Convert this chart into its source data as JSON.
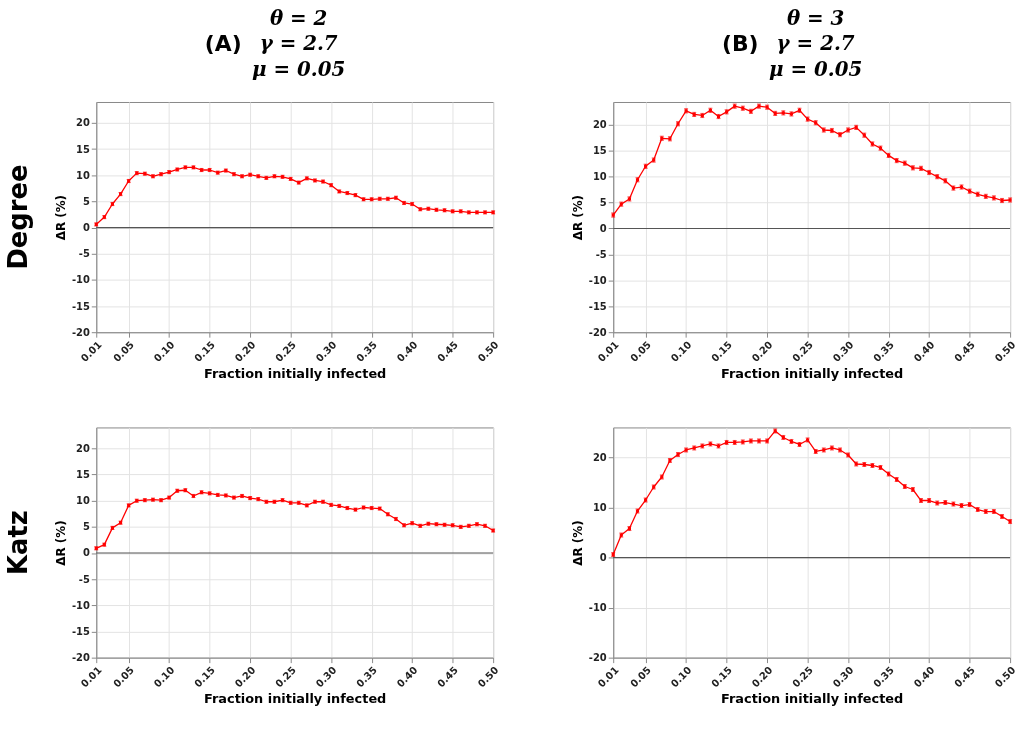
{
  "chart_data": [
    {
      "type": "line",
      "title": "(A)",
      "subtitle": "θ = 2\nγ = 2.7\nμ = 0.05",
      "annotations": [
        "Degree"
      ],
      "xlabel": "Fraction initially infected",
      "ylabel": "ΔR (%)",
      "grid": true,
      "marker": "square",
      "line_style": "solid",
      "xlim": [
        0.01,
        0.5
      ],
      "ylim": [
        -20,
        24
      ],
      "xticks": [
        {
          "value": 0.01,
          "label": "0.01"
        },
        {
          "value": 0.05,
          "label": "0.05"
        },
        {
          "value": 0.1,
          "label": "0.10"
        },
        {
          "value": 0.15,
          "label": "0.15"
        },
        {
          "value": 0.2,
          "label": "0.20"
        },
        {
          "value": 0.25,
          "label": "0.25"
        },
        {
          "value": 0.3,
          "label": "0.30"
        },
        {
          "value": 0.35,
          "label": "0.35"
        },
        {
          "value": 0.4,
          "label": "0.40"
        },
        {
          "value": 0.45,
          "label": "0.45"
        },
        {
          "value": 0.5,
          "label": "0.50"
        }
      ],
      "yticks": [
        -20,
        -15,
        -10,
        -5,
        0,
        5,
        10,
        15,
        20
      ],
      "ref_lines": [
        {
          "axis": "y",
          "value": 0,
          "color": "#555555"
        }
      ],
      "x": [
        0.01,
        0.02,
        0.03,
        0.04,
        0.05,
        0.06,
        0.07,
        0.08,
        0.09,
        0.1,
        0.11,
        0.12,
        0.13,
        0.14,
        0.15,
        0.16,
        0.17,
        0.18,
        0.19,
        0.2,
        0.21,
        0.22,
        0.23,
        0.24,
        0.25,
        0.26,
        0.27,
        0.28,
        0.29,
        0.3,
        0.31,
        0.32,
        0.33,
        0.34,
        0.35,
        0.36,
        0.37,
        0.38,
        0.39,
        0.4,
        0.41,
        0.42,
        0.43,
        0.44,
        0.45,
        0.46,
        0.47,
        0.48,
        0.49,
        0.5
      ],
      "series": [
        {
          "color": "#ff0000",
          "values": [
            0.6,
            2.0,
            4.5,
            6.4,
            8.9,
            10.4,
            10.3,
            9.8,
            10.2,
            10.6,
            11.1,
            11.5,
            11.5,
            11.0,
            11.0,
            10.5,
            10.9,
            10.2,
            9.8,
            10.1,
            9.8,
            9.5,
            9.8,
            9.7,
            9.3,
            8.6,
            9.4,
            9.0,
            8.8,
            8.1,
            6.9,
            6.6,
            6.2,
            5.4,
            5.4,
            5.5,
            5.5,
            5.7,
            4.7,
            4.5,
            3.5,
            3.6,
            3.4,
            3.3,
            3.1,
            3.1,
            2.9,
            2.9,
            2.9,
            2.9
          ],
          "errors": [
            0.3,
            0.3,
            0.3,
            0.3,
            0.3,
            0.3,
            0.3,
            0.3,
            0.3,
            0.3,
            0.3,
            0.3,
            0.3,
            0.3,
            0.3,
            0.3,
            0.3,
            0.3,
            0.3,
            0.3,
            0.3,
            0.3,
            0.3,
            0.3,
            0.3,
            0.3,
            0.3,
            0.3,
            0.3,
            0.3,
            0.3,
            0.3,
            0.3,
            0.3,
            0.3,
            0.3,
            0.3,
            0.3,
            0.3,
            0.3,
            0.3,
            0.3,
            0.3,
            0.3,
            0.3,
            0.3,
            0.3,
            0.3,
            0.3,
            0.3
          ]
        }
      ]
    },
    {
      "type": "line",
      "title": "(B)",
      "subtitle": "θ = 3\nγ = 2.7\nμ = 0.05",
      "xlabel": "Fraction initially infected",
      "ylabel": "ΔR (%)",
      "grid": true,
      "marker": "square",
      "line_style": "solid",
      "xlim": [
        0.01,
        0.5
      ],
      "ylim": [
        -20,
        24.4
      ],
      "xticks": [
        {
          "value": 0.01,
          "label": "0.01"
        },
        {
          "value": 0.05,
          "label": "0.05"
        },
        {
          "value": 0.1,
          "label": "0.10"
        },
        {
          "value": 0.15,
          "label": "0.15"
        },
        {
          "value": 0.2,
          "label": "0.20"
        },
        {
          "value": 0.25,
          "label": "0.25"
        },
        {
          "value": 0.3,
          "label": "0.30"
        },
        {
          "value": 0.35,
          "label": "0.35"
        },
        {
          "value": 0.4,
          "label": "0.40"
        },
        {
          "value": 0.45,
          "label": "0.45"
        },
        {
          "value": 0.5,
          "label": "0.50"
        }
      ],
      "yticks": [
        -20,
        -15,
        -10,
        -5,
        0,
        5,
        10,
        15,
        20
      ],
      "ref_lines": [
        {
          "axis": "y",
          "value": 0,
          "color": "#555555"
        }
      ],
      "x": [
        0.01,
        0.02,
        0.03,
        0.04,
        0.05,
        0.06,
        0.07,
        0.08,
        0.09,
        0.1,
        0.11,
        0.12,
        0.13,
        0.14,
        0.15,
        0.16,
        0.17,
        0.18,
        0.19,
        0.2,
        0.21,
        0.22,
        0.23,
        0.24,
        0.25,
        0.26,
        0.27,
        0.28,
        0.29,
        0.3,
        0.31,
        0.32,
        0.33,
        0.34,
        0.35,
        0.36,
        0.37,
        0.38,
        0.39,
        0.4,
        0.41,
        0.42,
        0.43,
        0.44,
        0.45,
        0.46,
        0.47,
        0.48,
        0.49,
        0.5
      ],
      "series": [
        {
          "color": "#ff0000",
          "values": [
            2.6,
            4.7,
            5.7,
            9.4,
            12.0,
            13.2,
            17.4,
            17.3,
            20.2,
            22.7,
            22.0,
            21.8,
            22.8,
            21.6,
            22.5,
            23.6,
            23.2,
            22.6,
            23.6,
            23.4,
            22.2,
            22.3,
            22.1,
            22.8,
            21.1,
            20.4,
            19.0,
            18.9,
            18.1,
            19.0,
            19.5,
            18.0,
            16.3,
            15.5,
            14.1,
            13.1,
            12.6,
            11.7,
            11.6,
            10.8,
            10.0,
            9.2,
            7.8,
            8.0,
            7.2,
            6.6,
            6.2,
            5.9,
            5.4,
            5.5
          ],
          "errors": [
            0.4,
            0.4,
            0.4,
            0.4,
            0.4,
            0.4,
            0.4,
            0.4,
            0.4,
            0.4,
            0.4,
            0.4,
            0.4,
            0.4,
            0.4,
            0.4,
            0.4,
            0.4,
            0.4,
            0.4,
            0.4,
            0.4,
            0.4,
            0.4,
            0.4,
            0.4,
            0.4,
            0.4,
            0.4,
            0.4,
            0.4,
            0.4,
            0.4,
            0.4,
            0.4,
            0.4,
            0.4,
            0.4,
            0.4,
            0.4,
            0.4,
            0.4,
            0.4,
            0.4,
            0.4,
            0.4,
            0.4,
            0.4,
            0.4,
            0.4
          ]
        }
      ]
    },
    {
      "type": "line",
      "annotations": [
        "Katz"
      ],
      "xlabel": "Fraction initially infected",
      "ylabel": "ΔR (%)",
      "grid": true,
      "marker": "square",
      "line_style": "solid",
      "xlim": [
        0.01,
        0.5
      ],
      "ylim": [
        -20,
        24
      ],
      "xticks": [
        {
          "value": 0.01,
          "label": "0.01"
        },
        {
          "value": 0.05,
          "label": "0.05"
        },
        {
          "value": 0.1,
          "label": "0.10"
        },
        {
          "value": 0.15,
          "label": "0.15"
        },
        {
          "value": 0.2,
          "label": "0.20"
        },
        {
          "value": 0.25,
          "label": "0.25"
        },
        {
          "value": 0.3,
          "label": "0.30"
        },
        {
          "value": 0.35,
          "label": "0.35"
        },
        {
          "value": 0.4,
          "label": "0.40"
        },
        {
          "value": 0.45,
          "label": "0.45"
        },
        {
          "value": 0.5,
          "label": "0.50"
        }
      ],
      "yticks": [
        -20,
        -15,
        -10,
        -5,
        0,
        5,
        10,
        15,
        20
      ],
      "ref_lines": [
        {
          "axis": "y",
          "value": 0,
          "color": "#555555"
        }
      ],
      "x": [
        0.01,
        0.02,
        0.03,
        0.04,
        0.05,
        0.06,
        0.07,
        0.08,
        0.09,
        0.1,
        0.11,
        0.12,
        0.13,
        0.14,
        0.15,
        0.16,
        0.17,
        0.18,
        0.19,
        0.2,
        0.21,
        0.22,
        0.23,
        0.24,
        0.25,
        0.26,
        0.27,
        0.28,
        0.29,
        0.3,
        0.31,
        0.32,
        0.33,
        0.34,
        0.35,
        0.36,
        0.37,
        0.38,
        0.39,
        0.4,
        0.41,
        0.42,
        0.43,
        0.44,
        0.45,
        0.46,
        0.47,
        0.48,
        0.49,
        0.5
      ],
      "series": [
        {
          "color": "#ff0000",
          "values": [
            0.9,
            1.6,
            4.8,
            5.8,
            9.1,
            10.0,
            10.1,
            10.2,
            10.1,
            10.6,
            11.9,
            12.0,
            10.9,
            11.6,
            11.4,
            11.1,
            11.0,
            10.6,
            10.9,
            10.5,
            10.3,
            9.8,
            9.8,
            10.1,
            9.6,
            9.6,
            9.1,
            9.8,
            9.8,
            9.2,
            9.0,
            8.6,
            8.3,
            8.7,
            8.6,
            8.5,
            7.4,
            6.5,
            5.3,
            5.7,
            5.2,
            5.6,
            5.5,
            5.4,
            5.3,
            5.0,
            5.2,
            5.5,
            5.2,
            4.3
          ],
          "errors": [
            0.3,
            0.3,
            0.3,
            0.3,
            0.3,
            0.3,
            0.3,
            0.3,
            0.3,
            0.3,
            0.3,
            0.3,
            0.3,
            0.3,
            0.3,
            0.3,
            0.3,
            0.3,
            0.3,
            0.3,
            0.3,
            0.3,
            0.3,
            0.3,
            0.3,
            0.3,
            0.3,
            0.3,
            0.3,
            0.3,
            0.3,
            0.3,
            0.3,
            0.3,
            0.3,
            0.3,
            0.3,
            0.3,
            0.3,
            0.3,
            0.3,
            0.3,
            0.3,
            0.3,
            0.3,
            0.3,
            0.3,
            0.3,
            0.3,
            0.3
          ]
        }
      ]
    },
    {
      "type": "line",
      "xlabel": "Fraction initially infected",
      "ylabel": "ΔR (%)",
      "grid": true,
      "marker": "square",
      "line_style": "solid",
      "xlim": [
        0.01,
        0.5
      ],
      "ylim": [
        -20,
        26
      ],
      "xticks": [
        {
          "value": 0.01,
          "label": "0.01"
        },
        {
          "value": 0.05,
          "label": "0.05"
        },
        {
          "value": 0.1,
          "label": "0.10"
        },
        {
          "value": 0.15,
          "label": "0.15"
        },
        {
          "value": 0.2,
          "label": "0.20"
        },
        {
          "value": 0.25,
          "label": "0.25"
        },
        {
          "value": 0.3,
          "label": "0.30"
        },
        {
          "value": 0.35,
          "label": "0.35"
        },
        {
          "value": 0.4,
          "label": "0.40"
        },
        {
          "value": 0.45,
          "label": "0.45"
        },
        {
          "value": 0.5,
          "label": "0.50"
        }
      ],
      "yticks": [
        -20,
        -10,
        0,
        10,
        20
      ],
      "ref_lines": [
        {
          "axis": "y",
          "value": 0,
          "color": "#555555"
        }
      ],
      "x": [
        0.01,
        0.02,
        0.03,
        0.04,
        0.05,
        0.06,
        0.07,
        0.08,
        0.09,
        0.1,
        0.11,
        0.12,
        0.13,
        0.14,
        0.15,
        0.16,
        0.17,
        0.18,
        0.19,
        0.2,
        0.21,
        0.22,
        0.23,
        0.24,
        0.25,
        0.26,
        0.27,
        0.28,
        0.29,
        0.3,
        0.31,
        0.32,
        0.33,
        0.34,
        0.35,
        0.36,
        0.37,
        0.38,
        0.39,
        0.4,
        0.41,
        0.42,
        0.43,
        0.44,
        0.45,
        0.46,
        0.47,
        0.48,
        0.49,
        0.5
      ],
      "series": [
        {
          "color": "#ff0000",
          "values": [
            0.6,
            4.5,
            5.8,
            9.3,
            11.5,
            14.1,
            16.1,
            19.4,
            20.6,
            21.5,
            21.9,
            22.3,
            22.7,
            22.3,
            23.0,
            23.0,
            23.1,
            23.3,
            23.3,
            23.3,
            25.3,
            24.0,
            23.2,
            22.6,
            23.5,
            21.2,
            21.5,
            21.9,
            21.5,
            20.5,
            18.7,
            18.6,
            18.4,
            18.0,
            16.7,
            15.6,
            14.2,
            13.6,
            11.4,
            11.4,
            10.9,
            11.0,
            10.7,
            10.4,
            10.6,
            9.6,
            9.2,
            9.2,
            8.2,
            7.2
          ],
          "errors": [
            0.4,
            0.4,
            0.4,
            0.4,
            0.4,
            0.4,
            0.4,
            0.4,
            0.4,
            0.4,
            0.4,
            0.4,
            0.4,
            0.4,
            0.4,
            0.4,
            0.4,
            0.4,
            0.4,
            0.4,
            0.4,
            0.4,
            0.4,
            0.4,
            0.4,
            0.4,
            0.4,
            0.4,
            0.4,
            0.4,
            0.4,
            0.4,
            0.4,
            0.4,
            0.4,
            0.4,
            0.4,
            0.4,
            0.4,
            0.4,
            0.4,
            0.4,
            0.4,
            0.4,
            0.4,
            0.4,
            0.4,
            0.4,
            0.4,
            0.4
          ]
        }
      ]
    }
  ]
}
